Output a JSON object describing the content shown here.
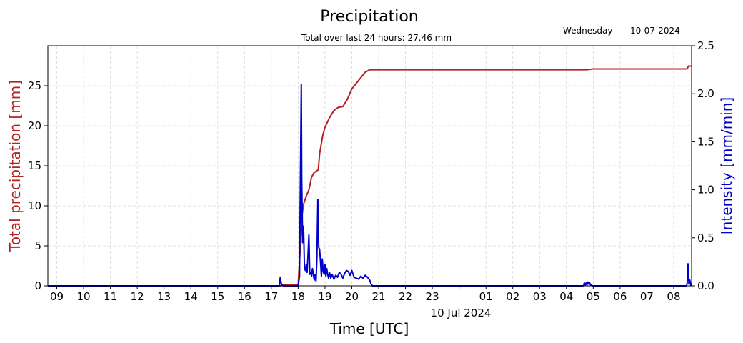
{
  "colors": {
    "total": "#b22222",
    "intensity": "#0000cc",
    "grid": "#d9d9d9"
  },
  "chart_data": {
    "type": "line",
    "title": "Precipitation",
    "subtitle": "Total over last 24 hours: 27.46 mm",
    "day_label": "Wednesday",
    "date_label": "10-07-2024",
    "xlabel": "Time [UTC]",
    "x_sublabel": "10 Jul 2024",
    "ylabel_left": "Total precipitation [mm]",
    "ylabel_right": "Intensity [mm/min]",
    "xlim": [
      "2024-07-09T08:40",
      "2024-07-10T08:40"
    ],
    "ylim_left": [
      0,
      30
    ],
    "ylim_right": [
      0,
      2.5
    ],
    "grid": true,
    "x_ticks": [
      {
        "t": "2024-07-09T09:00",
        "label": "09"
      },
      {
        "t": "2024-07-09T10:00",
        "label": "10"
      },
      {
        "t": "2024-07-09T11:00",
        "label": "11"
      },
      {
        "t": "2024-07-09T12:00",
        "label": "12"
      },
      {
        "t": "2024-07-09T13:00",
        "label": "13"
      },
      {
        "t": "2024-07-09T14:00",
        "label": "14"
      },
      {
        "t": "2024-07-09T15:00",
        "label": "15"
      },
      {
        "t": "2024-07-09T16:00",
        "label": "16"
      },
      {
        "t": "2024-07-09T17:00",
        "label": "17"
      },
      {
        "t": "2024-07-09T18:00",
        "label": "18"
      },
      {
        "t": "2024-07-09T19:00",
        "label": "19"
      },
      {
        "t": "2024-07-09T20:00",
        "label": "20"
      },
      {
        "t": "2024-07-09T21:00",
        "label": "21"
      },
      {
        "t": "2024-07-09T22:00",
        "label": "22"
      },
      {
        "t": "2024-07-09T23:00",
        "label": "23"
      },
      {
        "t": "2024-07-10T00:00",
        "label": ""
      },
      {
        "t": "2024-07-10T01:00",
        "label": "01"
      },
      {
        "t": "2024-07-10T02:00",
        "label": "02"
      },
      {
        "t": "2024-07-10T03:00",
        "label": "03"
      },
      {
        "t": "2024-07-10T04:00",
        "label": "04"
      },
      {
        "t": "2024-07-10T05:00",
        "label": "05"
      },
      {
        "t": "2024-07-10T06:00",
        "label": "06"
      },
      {
        "t": "2024-07-10T07:00",
        "label": "07"
      },
      {
        "t": "2024-07-10T08:00",
        "label": "08"
      }
    ],
    "y_ticks_left": [
      0,
      5,
      10,
      15,
      20,
      25
    ],
    "y_ticks_right": [
      "0.0",
      "0.5",
      "1.0",
      "1.5",
      "2.0",
      "2.5"
    ],
    "series": [
      {
        "key": "total",
        "axis": "left",
        "t": [
          "2024-07-09T08:40",
          "2024-07-09T17:20",
          "2024-07-09T17:25",
          "2024-07-09T18:00",
          "2024-07-09T18:05",
          "2024-07-09T18:08",
          "2024-07-09T18:12",
          "2024-07-09T18:18",
          "2024-07-09T18:24",
          "2024-07-09T18:30",
          "2024-07-09T18:35",
          "2024-07-09T18:40",
          "2024-07-09T18:45",
          "2024-07-09T18:48",
          "2024-07-09T18:55",
          "2024-07-09T19:00",
          "2024-07-09T19:10",
          "2024-07-09T19:20",
          "2024-07-09T19:30",
          "2024-07-09T19:40",
          "2024-07-09T19:50",
          "2024-07-09T20:00",
          "2024-07-09T20:10",
          "2024-07-09T20:20",
          "2024-07-09T20:30",
          "2024-07-09T20:40",
          "2024-07-09T20:45",
          "2024-07-10T04:45",
          "2024-07-10T05:00",
          "2024-07-10T08:30",
          "2024-07-10T08:33",
          "2024-07-10T08:40"
        ],
        "values": [
          0,
          0,
          0.1,
          0.1,
          5.0,
          8.5,
          10.2,
          11.2,
          12.0,
          13.6,
          14.1,
          14.3,
          14.5,
          16.5,
          18.8,
          19.8,
          21.0,
          21.9,
          22.3,
          22.4,
          23.3,
          24.6,
          25.3,
          26.0,
          26.7,
          27.0,
          27.0,
          27.0,
          27.1,
          27.1,
          27.46,
          27.46
        ]
      },
      {
        "key": "intensity",
        "axis": "right",
        "t": [
          "2024-07-09T08:40",
          "2024-07-09T17:18",
          "2024-07-09T17:20",
          "2024-07-09T17:22",
          "2024-07-09T17:24",
          "2024-07-09T17:26",
          "2024-07-09T18:00",
          "2024-07-09T18:03",
          "2024-07-09T18:05",
          "2024-07-09T18:07",
          "2024-07-09T18:08",
          "2024-07-09T18:10",
          "2024-07-09T18:12",
          "2024-07-09T18:14",
          "2024-07-09T18:16",
          "2024-07-09T18:18",
          "2024-07-09T18:20",
          "2024-07-09T18:22",
          "2024-07-09T18:24",
          "2024-07-09T18:26",
          "2024-07-09T18:28",
          "2024-07-09T18:30",
          "2024-07-09T18:32",
          "2024-07-09T18:34",
          "2024-07-09T18:36",
          "2024-07-09T18:38",
          "2024-07-09T18:40",
          "2024-07-09T18:42",
          "2024-07-09T18:44",
          "2024-07-09T18:46",
          "2024-07-09T18:48",
          "2024-07-09T18:50",
          "2024-07-09T18:52",
          "2024-07-09T18:54",
          "2024-07-09T18:56",
          "2024-07-09T18:58",
          "2024-07-09T19:00",
          "2024-07-09T19:02",
          "2024-07-09T19:04",
          "2024-07-09T19:06",
          "2024-07-09T19:08",
          "2024-07-09T19:10",
          "2024-07-09T19:13",
          "2024-07-09T19:16",
          "2024-07-09T19:20",
          "2024-07-09T19:24",
          "2024-07-09T19:28",
          "2024-07-09T19:32",
          "2024-07-09T19:36",
          "2024-07-09T19:40",
          "2024-07-09T19:44",
          "2024-07-09T19:48",
          "2024-07-09T19:52",
          "2024-07-09T19:56",
          "2024-07-09T20:00",
          "2024-07-09T20:05",
          "2024-07-09T20:10",
          "2024-07-09T20:15",
          "2024-07-09T20:20",
          "2024-07-09T20:25",
          "2024-07-09T20:30",
          "2024-07-09T20:35",
          "2024-07-09T20:40",
          "2024-07-09T20:43",
          "2024-07-09T20:46",
          "2024-07-10T04:38",
          "2024-07-10T04:40",
          "2024-07-10T04:42",
          "2024-07-10T04:44",
          "2024-07-10T04:46",
          "2024-07-10T04:48",
          "2024-07-10T04:50",
          "2024-07-10T04:52",
          "2024-07-10T04:54",
          "2024-07-10T04:56",
          "2024-07-10T04:58",
          "2024-07-10T08:28",
          "2024-07-10T08:30",
          "2024-07-10T08:32",
          "2024-07-10T08:34",
          "2024-07-10T08:36",
          "2024-07-10T08:38",
          "2024-07-10T08:40"
        ],
        "values": [
          0,
          0,
          0.09,
          0.03,
          0.01,
          0,
          0,
          0.1,
          1.1,
          2.1,
          1.1,
          0.45,
          0.62,
          0.2,
          0.16,
          0.22,
          0.14,
          0.32,
          0.53,
          0.12,
          0.14,
          0.1,
          0.18,
          0.12,
          0.06,
          0.12,
          0.05,
          0.3,
          0.9,
          0.4,
          0.38,
          0.25,
          0.1,
          0.28,
          0.15,
          0.12,
          0.22,
          0.1,
          0.18,
          0.12,
          0.08,
          0.14,
          0.08,
          0.12,
          0.07,
          0.11,
          0.09,
          0.14,
          0.12,
          0.08,
          0.13,
          0.16,
          0.15,
          0.11,
          0.16,
          0.09,
          0.08,
          0.07,
          0.1,
          0.08,
          0.11,
          0.09,
          0.06,
          0.02,
          0,
          0,
          0.03,
          0.01,
          0.03,
          0.01,
          0.04,
          0.02,
          0.03,
          0.01,
          0.01,
          0,
          0,
          0.02,
          0.23,
          0.02,
          0.06,
          0.01,
          0
        ]
      }
    ]
  }
}
